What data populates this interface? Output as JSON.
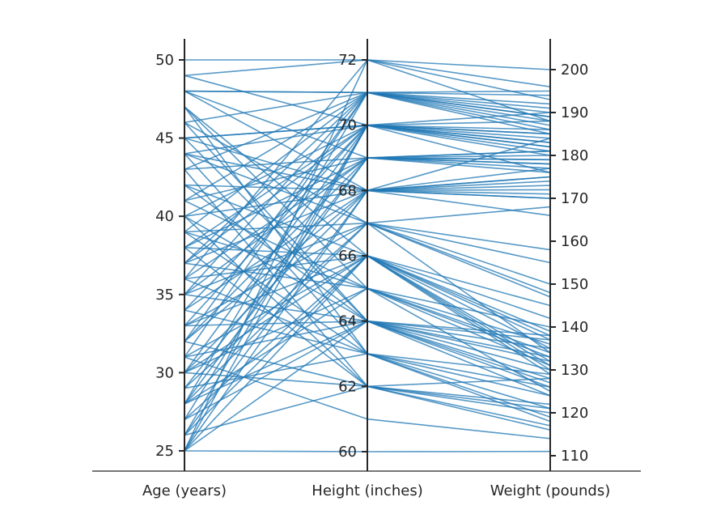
{
  "chart_data": {
    "type": "parallel-coordinates",
    "series_color": "#1f77b4",
    "axes": [
      {
        "key": "age",
        "label": "Age (years)",
        "range": [
          25,
          50
        ],
        "ticks": [
          25,
          30,
          35,
          40,
          45,
          50
        ]
      },
      {
        "key": "height",
        "label": "Height (inches)",
        "range": [
          60,
          72
        ],
        "ticks": [
          60,
          62,
          64,
          66,
          68,
          70,
          72
        ]
      },
      {
        "key": "weight",
        "label": "Weight (pounds)",
        "range": [
          110,
          200
        ],
        "ticks": [
          110,
          120,
          130,
          140,
          150,
          160,
          170,
          180,
          190,
          200
        ]
      }
    ],
    "records": [
      [
        50,
        72,
        200
      ],
      [
        49,
        72,
        188
      ],
      [
        49,
        70,
        182
      ],
      [
        48,
        71,
        191
      ],
      [
        48,
        71,
        185
      ],
      [
        48,
        69,
        178
      ],
      [
        47,
        66,
        130
      ],
      [
        47,
        65,
        125
      ],
      [
        46,
        71,
        186
      ],
      [
        46,
        64,
        138
      ],
      [
        45,
        70,
        190
      ],
      [
        45,
        70,
        176
      ],
      [
        45,
        68,
        172
      ],
      [
        44,
        70,
        183
      ],
      [
        44,
        67,
        148
      ],
      [
        44,
        63,
        121
      ],
      [
        43,
        69,
        180
      ],
      [
        43,
        62,
        128
      ],
      [
        42,
        68,
        184
      ],
      [
        42,
        66,
        135
      ],
      [
        41,
        71,
        192
      ],
      [
        41,
        65,
        140
      ],
      [
        40,
        70,
        188
      ],
      [
        40,
        68,
        166
      ],
      [
        40,
        64,
        132
      ],
      [
        39,
        71,
        189
      ],
      [
        39,
        67,
        158
      ],
      [
        39,
        63,
        126
      ],
      [
        38,
        69,
        181
      ],
      [
        38,
        66,
        137
      ],
      [
        37,
        70,
        185
      ],
      [
        37,
        68,
        170
      ],
      [
        37,
        65,
        131
      ],
      [
        36,
        72,
        193
      ],
      [
        36,
        69,
        176
      ],
      [
        36,
        66,
        142
      ],
      [
        35,
        71,
        187
      ],
      [
        35,
        64,
        128
      ],
      [
        34,
        68,
        173
      ],
      [
        34,
        63,
        119
      ],
      [
        33,
        70,
        182
      ],
      [
        33,
        67,
        150
      ],
      [
        33,
        64,
        135
      ],
      [
        32,
        69,
        178
      ],
      [
        32,
        62,
        117
      ],
      [
        31,
        71,
        190
      ],
      [
        31,
        66,
        139
      ],
      [
        31,
        61,
        114
      ],
      [
        30,
        70,
        186
      ],
      [
        30,
        68,
        177
      ],
      [
        30,
        65,
        133
      ],
      [
        29,
        69,
        181
      ],
      [
        29,
        63,
        124
      ],
      [
        28,
        71,
        194
      ],
      [
        28,
        67,
        168
      ],
      [
        28,
        64,
        130
      ],
      [
        27,
        70,
        180
      ],
      [
        27,
        66,
        145
      ],
      [
        26,
        68,
        175
      ],
      [
        26,
        62,
        122
      ],
      [
        25,
        72,
        196
      ],
      [
        25,
        70,
        185
      ],
      [
        25,
        68,
        171
      ],
      [
        25,
        66,
        138
      ],
      [
        25,
        64,
        127
      ],
      [
        25,
        60,
        111
      ],
      [
        48,
        68,
        175
      ],
      [
        47,
        63,
        118
      ],
      [
        46,
        67,
        134
      ],
      [
        43,
        71,
        195
      ],
      [
        42,
        64,
        126
      ],
      [
        41,
        69,
        179
      ],
      [
        39,
        65,
        136
      ],
      [
        38,
        62,
        121
      ],
      [
        37,
        71,
        188
      ],
      [
        36,
        63,
        129
      ],
      [
        35,
        67,
        155
      ],
      [
        34,
        70,
        184
      ],
      [
        33,
        66,
        131
      ],
      [
        32,
        68,
        174
      ],
      [
        31,
        64,
        137
      ],
      [
        30,
        62,
        120
      ],
      [
        29,
        67,
        147
      ],
      [
        28,
        65,
        134
      ],
      [
        27,
        64,
        124
      ],
      [
        26,
        70,
        183
      ],
      [
        45,
        64,
        133
      ],
      [
        44,
        68,
        170
      ],
      [
        40,
        62,
        116
      ],
      [
        38,
        70,
        181
      ],
      [
        35,
        69,
        177
      ],
      [
        32,
        71,
        189
      ],
      [
        30,
        66,
        132
      ],
      [
        28,
        69,
        179
      ],
      [
        26,
        66,
        129
      ]
    ]
  }
}
